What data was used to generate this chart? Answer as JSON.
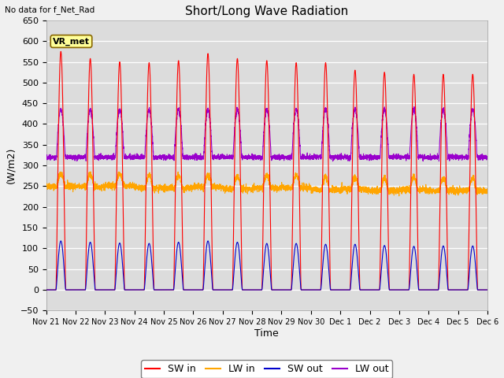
{
  "title": "Short/Long Wave Radiation",
  "xlabel": "Time",
  "ylabel": "(W/m2)",
  "note": "No data for f_Net_Rad",
  "station_label": "VR_met",
  "ylim": [
    -50,
    630
  ],
  "num_days": 15,
  "sw_in_peaks": [
    575,
    558,
    550,
    548,
    553,
    570,
    558,
    553,
    548,
    548,
    530,
    525,
    520,
    520,
    520
  ],
  "sw_out_peaks": [
    118,
    115,
    113,
    112,
    115,
    118,
    115,
    112,
    112,
    110,
    110,
    107,
    105,
    106,
    106
  ],
  "colors": {
    "sw_in": "#ff0000",
    "lw_in": "#ffa500",
    "sw_out": "#0000cc",
    "lw_out": "#9900cc",
    "background": "#dcdcdc",
    "fig_bg": "#f0f0f0"
  },
  "x_tick_labels": [
    "Nov 21",
    "Nov 22",
    "Nov 23",
    "Nov 24",
    "Nov 25",
    "Nov 26",
    "Nov 27",
    "Nov 28",
    "Nov 29",
    "Nov 30",
    "Dec 1",
    "Dec 2",
    "Dec 3",
    "Dec 4",
    "Dec 5",
    "Dec 6"
  ]
}
